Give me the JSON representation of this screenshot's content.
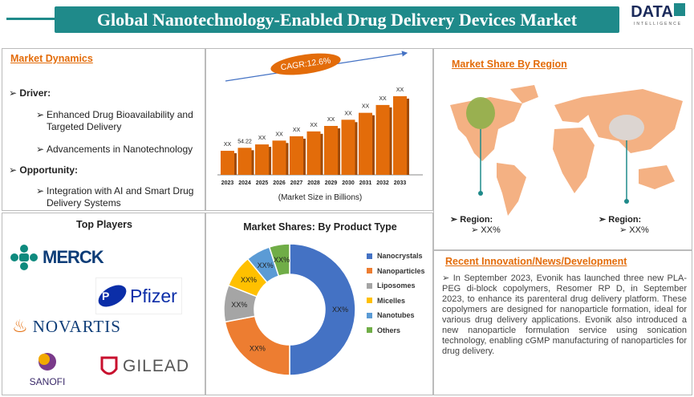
{
  "header": {
    "title": "Global Nanotechnology-Enabled Drug Delivery Devices Market",
    "logo_main": "DATA",
    "logo_sub": "INTELLIGENCE"
  },
  "market_dynamics": {
    "title": "Market Dynamics",
    "driver_label": "Driver:",
    "drivers": [
      "Enhanced Drug Bioavailability and Targeted Delivery",
      "Advancements in Nanotechnology"
    ],
    "opportunity_label": "Opportunity:",
    "opportunities": [
      "Integration with AI and Smart Drug Delivery Systems"
    ]
  },
  "chart_data": [
    {
      "type": "bar",
      "title": "",
      "xlabel": "(Market Size in Billions)",
      "ylabel": "",
      "annotation": "CAGR:12.6%",
      "categories": [
        "2023",
        "2024",
        "2025",
        "2026",
        "2027",
        "2028",
        "2029",
        "2030",
        "2031",
        "2032",
        "2033"
      ],
      "values": [
        48.2,
        54.22,
        61.0,
        68.7,
        77.4,
        87.1,
        98.1,
        110.5,
        124.4,
        140.1,
        157.7
      ],
      "data_labels": [
        "XX",
        "54.22",
        "XX",
        "XX",
        "XX",
        "XX",
        "XX",
        "XX",
        "XX",
        "XX",
        "XX"
      ],
      "color": "#e36c0a"
    },
    {
      "type": "pie",
      "title": "Market Shares: By Product Type",
      "categories": [
        "Nanocrystals",
        "Nanoparticles",
        "Liposomes",
        "Micelles",
        "Nanotubes",
        "Others"
      ],
      "values": [
        50,
        22,
        9,
        8,
        6,
        5
      ],
      "data_labels": [
        "XX%",
        "XX%",
        "XX%",
        "XX%",
        "XX%",
        "XX%"
      ],
      "colors": [
        "#4472c4",
        "#ed7d31",
        "#a5a5a5",
        "#ffc000",
        "#5b9bd5",
        "#70ad47"
      ],
      "legend_position": "right"
    }
  ],
  "region": {
    "title": "Market Share By Region",
    "left_label": "Region:",
    "left_value": "XX%",
    "right_label": "Region:",
    "right_value": "XX%"
  },
  "players": {
    "title": "Top Players",
    "names": [
      "MERCK",
      "Pfizer",
      "NOVARTIS",
      "SANOFI",
      "GILEAD"
    ]
  },
  "news": {
    "title": "Recent Innovation/News/Development",
    "text": "In September 2023, Evonik has launched three new PLA-PEG di-block copolymers, Resomer RP D, in September 2023, to enhance its parenteral drug delivery platform. These copolymers are designed for nanoparticle formation, ideal for various drug delivery applications. Evonik also introduced a new nanoparticle formulation service using sonication technology, enabling cGMP manufacturing of nanoparticles for drug delivery."
  }
}
